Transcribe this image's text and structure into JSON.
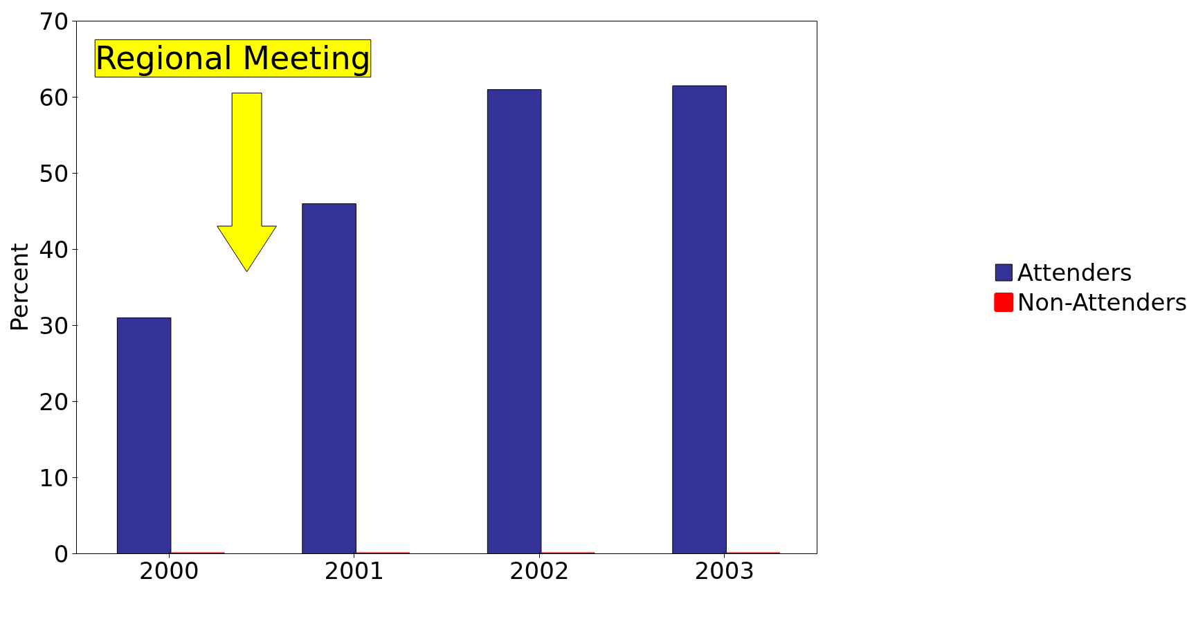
{
  "chart_data": {
    "type": "bar",
    "ylabel": "Percent",
    "categories": [
      "2000",
      "2001",
      "2002",
      "2003"
    ],
    "series": [
      {
        "name": "Attenders",
        "color": "#333399",
        "values": [
          31,
          46,
          61,
          61.5
        ]
      },
      {
        "name": "Non-Attenders",
        "color": "#ff0000",
        "values": [
          0,
          0,
          0,
          0
        ]
      }
    ],
    "ylim": [
      0,
      70
    ],
    "yticks": [
      0,
      10,
      20,
      30,
      40,
      50,
      60,
      70
    ],
    "legend": "right",
    "annotations": [
      "Regional Meeting"
    ]
  }
}
